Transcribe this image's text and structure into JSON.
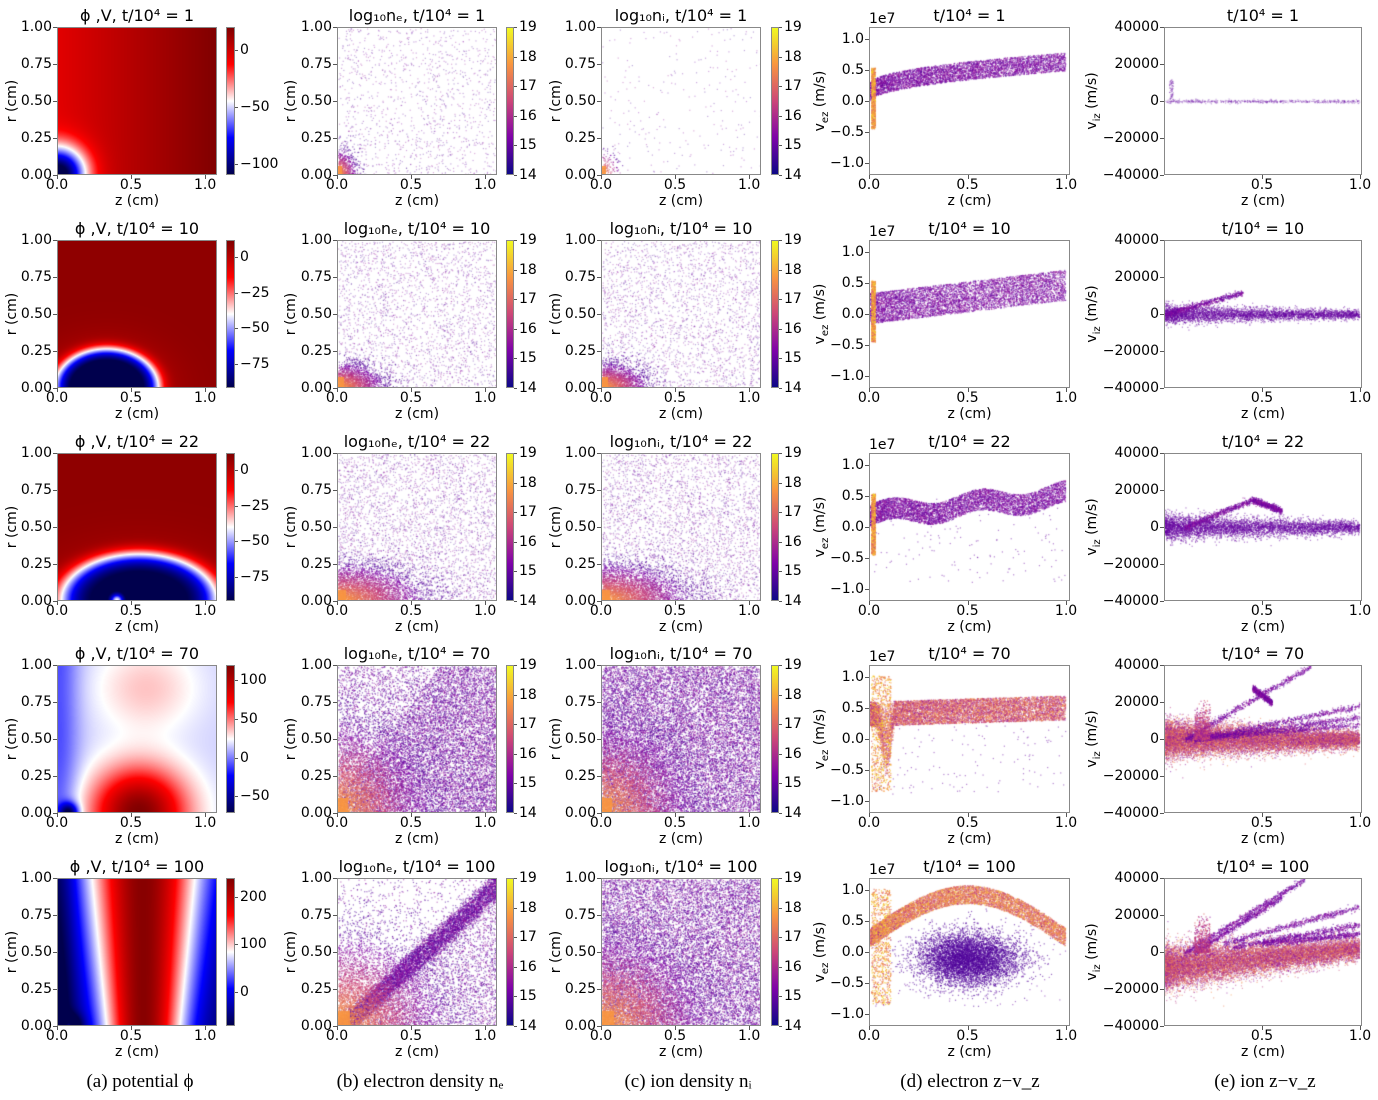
{
  "captions": [
    "(a) potential ϕ",
    "(b) electron density nₑ",
    "(c) ion density nᵢ",
    "(d) electron z−v_z",
    "(e) ion z−v_z"
  ],
  "chart_data": [
    {
      "column": "a",
      "type": "heatmap",
      "colormap": "seismic",
      "xlabel": "z (cm)",
      "ylabel": "r (cm)",
      "xlim": [
        0,
        1.08
      ],
      "ylim": [
        0,
        1
      ],
      "xticks": [
        "0.0",
        "0.5",
        "1.0"
      ],
      "yticks": [
        "0.00",
        "0.25",
        "0.50",
        "0.75",
        "1.00"
      ],
      "panels": [
        {
          "title": "ϕ ,V, t/10⁴ = 1",
          "colorbar": {
            "range": [
              -110,
              20
            ],
            "ticks": [
              "0",
              "−50",
              "−100"
            ]
          }
        },
        {
          "title": "ϕ ,V, t/10⁴ = 10",
          "colorbar": {
            "range": [
              -92,
              12
            ],
            "ticks": [
              "0",
              "−25",
              "−50",
              "−75"
            ]
          }
        },
        {
          "title": "ϕ ,V, t/10⁴ = 22",
          "colorbar": {
            "range": [
              -92,
              12
            ],
            "ticks": [
              "0",
              "−25",
              "−50",
              "−75"
            ]
          }
        },
        {
          "title": "ϕ ,V, t/10⁴ = 70",
          "colorbar": {
            "range": [
              -72,
              120
            ],
            "ticks": [
              "100",
              "50",
              "0",
              "−50"
            ]
          }
        },
        {
          "title": "ϕ ,V, t/10⁴ = 100",
          "colorbar": {
            "range": [
              -72,
              240
            ],
            "ticks": [
              "200",
              "100",
              "0"
            ]
          }
        }
      ]
    },
    {
      "column": "b",
      "type": "heatmap",
      "colormap": "plasma",
      "xlabel": "z (cm)",
      "ylabel": "r (cm)",
      "xlim": [
        0,
        1.08
      ],
      "ylim": [
        0,
        1
      ],
      "xticks": [
        "0.0",
        "0.5",
        "1.0"
      ],
      "yticks": [
        "0.00",
        "0.25",
        "0.50",
        "0.75",
        "1.00"
      ],
      "panels": [
        {
          "title": "log₁₀nₑ, t/10⁴ = 1",
          "colorbar": {
            "range": [
              14,
              19
            ],
            "ticks": [
              "19",
              "18",
              "17",
              "16",
              "15",
              "14"
            ]
          }
        },
        {
          "title": "log₁₀nₑ, t/10⁴ = 10",
          "colorbar": {
            "range": [
              14,
              19
            ],
            "ticks": [
              "19",
              "18",
              "17",
              "16",
              "15",
              "14"
            ]
          }
        },
        {
          "title": "log₁₀nₑ, t/10⁴ = 22",
          "colorbar": {
            "range": [
              14,
              19
            ],
            "ticks": [
              "19",
              "18",
              "17",
              "16",
              "15",
              "14"
            ]
          }
        },
        {
          "title": "log₁₀nₑ, t/10⁴ = 70",
          "colorbar": {
            "range": [
              14,
              19
            ],
            "ticks": [
              "19",
              "18",
              "17",
              "16",
              "15",
              "14"
            ]
          }
        },
        {
          "title": "log₁₀nₑ, t/10⁴ = 100",
          "colorbar": {
            "range": [
              14,
              19
            ],
            "ticks": [
              "19",
              "18",
              "17",
              "16",
              "15",
              "14"
            ]
          }
        }
      ]
    },
    {
      "column": "c",
      "type": "heatmap",
      "colormap": "plasma",
      "xlabel": "z (cm)",
      "ylabel": "r (cm)",
      "xlim": [
        0,
        1.08
      ],
      "ylim": [
        0,
        1
      ],
      "xticks": [
        "0.0",
        "0.5",
        "1.0"
      ],
      "yticks": [
        "0.00",
        "0.25",
        "0.50",
        "0.75",
        "1.00"
      ],
      "panels": [
        {
          "title": "log₁₀nᵢ, t/10⁴ = 1",
          "colorbar": {
            "range": [
              14,
              19
            ],
            "ticks": [
              "19",
              "18",
              "17",
              "16",
              "15",
              "14"
            ]
          }
        },
        {
          "title": "log₁₀nᵢ, t/10⁴ = 10",
          "colorbar": {
            "range": [
              14,
              19
            ],
            "ticks": [
              "19",
              "18",
              "17",
              "16",
              "15",
              "14"
            ]
          }
        },
        {
          "title": "log₁₀nᵢ, t/10⁴ = 22",
          "colorbar": {
            "range": [
              14,
              19
            ],
            "ticks": [
              "19",
              "18",
              "17",
              "16",
              "15",
              "14"
            ]
          }
        },
        {
          "title": "log₁₀nᵢ, t/10⁴ = 70",
          "colorbar": {
            "range": [
              14,
              19
            ],
            "ticks": [
              "19",
              "18",
              "17",
              "16",
              "15",
              "14"
            ]
          }
        },
        {
          "title": "log₁₀nᵢ, t/10⁴ = 100",
          "colorbar": {
            "range": [
              14,
              19
            ],
            "ticks": [
              "19",
              "18",
              "17",
              "16",
              "15",
              "14"
            ]
          }
        }
      ]
    },
    {
      "column": "d",
      "type": "scatter",
      "colormap": "plasma",
      "xlabel": "z (cm)",
      "ylabel": "v_ez (m/s)",
      "ylabel_main": "v",
      "ylabel_sub": "ez",
      "ylabel_unit": " (m/s)",
      "y_offset_label": "1e7",
      "xlim": [
        0,
        1.02
      ],
      "ylim": [
        -1.2,
        1.2
      ],
      "xticks": [
        "0.0",
        "0.5",
        "1.0"
      ],
      "yticks": [
        "1.0",
        "0.5",
        "0.0",
        "−0.5",
        "−1.0"
      ],
      "panels": [
        {
          "title": "t/10⁴ = 1"
        },
        {
          "title": "t/10⁴ = 10"
        },
        {
          "title": "t/10⁴ = 22"
        },
        {
          "title": "t/10⁴ = 70"
        },
        {
          "title": "t/10⁴ = 100"
        }
      ]
    },
    {
      "column": "e",
      "type": "scatter",
      "colormap": "plasma",
      "xlabel": "z (cm)",
      "ylabel": "v_iz (m/s)",
      "ylabel_main": "v",
      "ylabel_sub": "iz",
      "ylabel_unit": " (m/s)",
      "xlim": [
        0,
        1.01
      ],
      "ylim": [
        -40000,
        40000
      ],
      "xticks": [
        "0.5",
        "1.0"
      ],
      "yticks": [
        "40000",
        "20000",
        "0",
        "−20000",
        "−40000"
      ],
      "panels": [
        {
          "title": "t/10⁴ = 1"
        },
        {
          "title": "t/10⁴ = 10"
        },
        {
          "title": "t/10⁴ = 22"
        },
        {
          "title": "t/10⁴ = 70"
        },
        {
          "title": "t/10⁴ = 100"
        }
      ]
    }
  ]
}
